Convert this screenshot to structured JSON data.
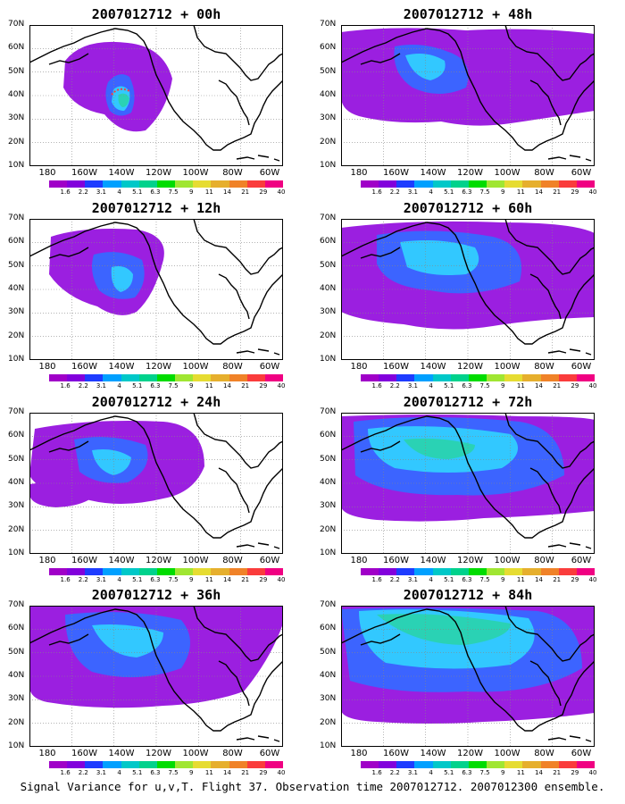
{
  "panels": [
    {
      "title": "2007012712 + 00h",
      "lead": "00h"
    },
    {
      "title": "2007012712 + 48h",
      "lead": "48h"
    },
    {
      "title": "2007012712 + 12h",
      "lead": "12h"
    },
    {
      "title": "2007012712 + 60h",
      "lead": "60h"
    },
    {
      "title": "2007012712 + 24h",
      "lead": "24h"
    },
    {
      "title": "2007012712 + 72h",
      "lead": "72h"
    },
    {
      "title": "2007012712 + 36h",
      "lead": "36h"
    },
    {
      "title": "2007012712 + 84h",
      "lead": "84h"
    }
  ],
  "lat_labels": [
    "70N",
    "60N",
    "50N",
    "40N",
    "30N",
    "20N",
    "10N"
  ],
  "lon_labels": [
    "180",
    "160W",
    "140W",
    "120W",
    "100W",
    "80W",
    "60W"
  ],
  "colorbar": {
    "labels": [
      "1.6",
      "2.2",
      "3.1",
      "4",
      "5.1",
      "6.3",
      "7.5",
      "9",
      "11",
      "14",
      "21",
      "29",
      "40"
    ],
    "colors": [
      "#a000c8",
      "#8200dc",
      "#1e3cff",
      "#00a0ff",
      "#00c8c8",
      "#00d28c",
      "#00dc00",
      "#a0e632",
      "#e6dc32",
      "#e6af2d",
      "#f08228",
      "#fa3c3c",
      "#f00082"
    ]
  },
  "footer": "Signal Variance for u,v,T. Flight 37. Observation time 2007012712. 2007012300 ensemble.",
  "colors": {
    "low": "#9b1fe0",
    "mid": "#3c64ff",
    "high": "#32c8ff",
    "teal": "#2ad2b4",
    "coast": "#000000"
  }
}
